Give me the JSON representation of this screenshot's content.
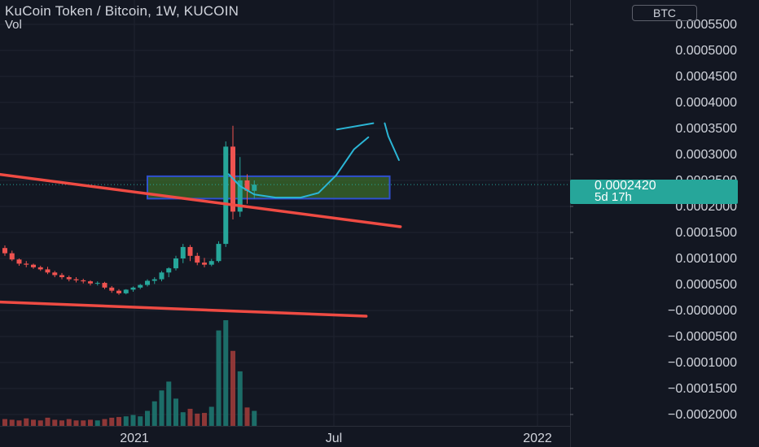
{
  "header": {
    "title": "KuCoin Token / Bitcoin, 1W, KUCOIN",
    "volume_label": "Vol",
    "currency": "BTC"
  },
  "last_price": {
    "value": "0.0002420",
    "countdown": "5d 17h"
  },
  "colors": {
    "background": "#131722",
    "up": "#26a69a",
    "down": "#ef5350",
    "trendline": "#ef4b43",
    "zone_fill": "#3b6b2a",
    "zone_border": "#2f4fd0",
    "drawing": "#2bb6d6"
  },
  "chart_data": {
    "type": "candlestick",
    "title": "KuCoin Token / Bitcoin, 1W, KUCOIN",
    "interval": "1W",
    "x_ticks": [
      "2021",
      "Jul",
      "2022"
    ],
    "y_ticks": [
      "0.0005500",
      "0.0005000",
      "0.0004500",
      "0.0004000",
      "0.0003500",
      "0.0003000",
      "0.0002500",
      "0.0002000",
      "0.0001500",
      "0.0001000",
      "0.0000500",
      "−0.0000000",
      "−0.0000500",
      "−0.0001000",
      "−0.0001500",
      "−0.0002000"
    ],
    "ylim": [
      -0.00022,
      0.00058
    ],
    "grid": true,
    "candles": [
      {
        "o": 0.00012,
        "h": 0.000125,
        "l": 0.000105,
        "c": 0.00011
      },
      {
        "o": 0.00011,
        "h": 0.000115,
        "l": 9.5e-05,
        "c": 9.8e-05
      },
      {
        "o": 9.8e-05,
        "h": 0.0001,
        "l": 8.6e-05,
        "c": 9e-05
      },
      {
        "o": 9e-05,
        "h": 9.5e-05,
        "l": 8.3e-05,
        "c": 8.8e-05
      },
      {
        "o": 8.8e-05,
        "h": 9e-05,
        "l": 8e-05,
        "c": 8.3e-05
      },
      {
        "o": 8.3e-05,
        "h": 8.6e-05,
        "l": 7.6e-05,
        "c": 7.9e-05
      },
      {
        "o": 7.9e-05,
        "h": 8.4e-05,
        "l": 7e-05,
        "c": 7.3e-05
      },
      {
        "o": 7.3e-05,
        "h": 7.6e-05,
        "l": 6.4e-05,
        "c": 6.8e-05
      },
      {
        "o": 6.8e-05,
        "h": 7.2e-05,
        "l": 6e-05,
        "c": 6.4e-05
      },
      {
        "o": 6.4e-05,
        "h": 6.7e-05,
        "l": 5.6e-05,
        "c": 6e-05
      },
      {
        "o": 6e-05,
        "h": 6.4e-05,
        "l": 5.4e-05,
        "c": 5.8e-05
      },
      {
        "o": 5.8e-05,
        "h": 6.1e-05,
        "l": 5.2e-05,
        "c": 5.6e-05
      },
      {
        "o": 5.6e-05,
        "h": 5.8e-05,
        "l": 4.8e-05,
        "c": 5.2e-05
      },
      {
        "o": 5.2e-05,
        "h": 5.6e-05,
        "l": 4.8e-05,
        "c": 5.3e-05
      },
      {
        "o": 5.3e-05,
        "h": 5.5e-05,
        "l": 4.1e-05,
        "c": 4.4e-05
      },
      {
        "o": 4.4e-05,
        "h": 4.7e-05,
        "l": 3.4e-05,
        "c": 3.8e-05
      },
      {
        "o": 3.8e-05,
        "h": 4.1e-05,
        "l": 3e-05,
        "c": 3.3e-05
      },
      {
        "o": 3.3e-05,
        "h": 4.1e-05,
        "l": 3.1e-05,
        "c": 4e-05
      },
      {
        "o": 4e-05,
        "h": 4.6e-05,
        "l": 3.6e-05,
        "c": 4.4e-05
      },
      {
        "o": 4.4e-05,
        "h": 5.1e-05,
        "l": 4.1e-05,
        "c": 4.9e-05
      },
      {
        "o": 4.9e-05,
        "h": 6e-05,
        "l": 4.6e-05,
        "c": 5.7e-05
      },
      {
        "o": 5.7e-05,
        "h": 6.4e-05,
        "l": 5.1e-05,
        "c": 6e-05
      },
      {
        "o": 6e-05,
        "h": 7.6e-05,
        "l": 5.6e-05,
        "c": 7.3e-05
      },
      {
        "o": 7.3e-05,
        "h": 8.3e-05,
        "l": 6.4e-05,
        "c": 8.1e-05
      },
      {
        "o": 8.1e-05,
        "h": 0.000105,
        "l": 7.7e-05,
        "c": 0.0001
      },
      {
        "o": 0.0001,
        "h": 0.000128,
        "l": 9.1e-05,
        "c": 0.000122
      },
      {
        "o": 0.000122,
        "h": 0.000126,
        "l": 9.5e-05,
        "c": 0.000105
      },
      {
        "o": 0.000105,
        "h": 0.000111,
        "l": 8.7e-05,
        "c": 9.2e-05
      },
      {
        "o": 9.2e-05,
        "h": 0.000101,
        "l": 8.3e-05,
        "c": 8.8e-05
      },
      {
        "o": 8.8e-05,
        "h": 9.9e-05,
        "l": 8.5e-05,
        "c": 9.5e-05
      },
      {
        "o": 9.5e-05,
        "h": 0.000133,
        "l": 9.2e-05,
        "c": 0.000128
      },
      {
        "o": 0.000128,
        "h": 0.000325,
        "l": 0.000122,
        "c": 0.000315
      },
      {
        "o": 0.000315,
        "h": 0.000355,
        "l": 0.000175,
        "c": 0.00019
      },
      {
        "o": 0.00019,
        "h": 0.000295,
        "l": 0.00018,
        "c": 0.00025
      },
      {
        "o": 0.00025,
        "h": 0.000262,
        "l": 0.000205,
        "c": 0.00023
      },
      {
        "o": 0.00023,
        "h": 0.00025,
        "l": 0.000215,
        "c": 0.000242
      }
    ],
    "volume_series": [
      10,
      9,
      8,
      11,
      9,
      8,
      12,
      9,
      8,
      10,
      8,
      8,
      9,
      8,
      10,
      12,
      13,
      14,
      16,
      14,
      22,
      36,
      52,
      65,
      40,
      20,
      25,
      18,
      19,
      28,
      140,
      155,
      110,
      80,
      27,
      22
    ],
    "trendlines": [
      {
        "from": {
          "candle": -15.2,
          "price": 0.0002875
        },
        "to": {
          "candle": 55.5,
          "price": 0.000161
        }
      },
      {
        "from": {
          "candle": -15.2,
          "price": 2.4e-05
        },
        "to": {
          "candle": 50.7,
          "price": -1.1e-05
        }
      }
    ],
    "zone": {
      "from_candle": 20,
      "to_candle": 54,
      "top": 0.000258,
      "bottom": 0.000215
    },
    "sketch_paths": [
      [
        [
          31.4,
          0.000262
        ],
        [
          33.0,
          0.000239
        ],
        [
          35.0,
          0.000223
        ],
        [
          38.0,
          0.000217
        ],
        [
          41.5,
          0.000217
        ],
        [
          44.0,
          0.000226
        ],
        [
          46.5,
          0.00026
        ],
        [
          49.0,
          0.00031
        ],
        [
          51.0,
          0.000333
        ]
      ],
      [
        [
          46.6,
          0.000348
        ],
        [
          51.7,
          0.00036
        ]
      ],
      [
        [
          53.3,
          0.00036
        ],
        [
          53.8,
          0.000335
        ],
        [
          55.3,
          0.000289
        ]
      ]
    ]
  }
}
